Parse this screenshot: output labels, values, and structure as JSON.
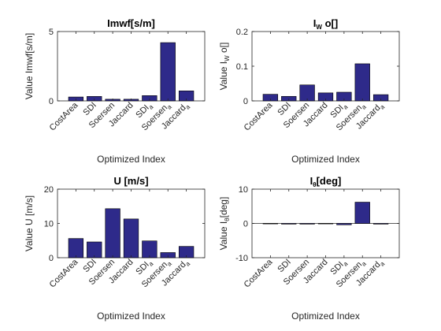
{
  "chart_data": [
    {
      "type": "bar",
      "title": "Imwf[s/m]",
      "xlabel": "Optimized Index",
      "ylabel": "Value Imwf[s/m]",
      "ylim": [
        0,
        5
      ],
      "yticks": [
        "0",
        "5"
      ],
      "categories": [
        "CostArea",
        "SDI",
        "Soersen",
        "Jaccard",
        "SDI_a",
        "Soersen_a",
        "Jaccard_a"
      ],
      "values": [
        0.28,
        0.32,
        0.12,
        0.12,
        0.38,
        4.2,
        0.72
      ],
      "bar_color": "#2e2a8a"
    },
    {
      "type": "bar",
      "title": "I_W o[]",
      "xlabel": "Optimized Index",
      "ylabel": "Value I_W o[]",
      "ylim": [
        0,
        0.2
      ],
      "yticks": [
        "0",
        "0.1",
        "0.2"
      ],
      "categories": [
        "CostArea",
        "SDI",
        "Soersen",
        "Jaccard",
        "SDI_a",
        "Soersen_a",
        "Jaccard_a"
      ],
      "values": [
        0.019,
        0.013,
        0.046,
        0.023,
        0.025,
        0.107,
        0.018
      ],
      "bar_color": "#2e2a8a"
    },
    {
      "type": "bar",
      "title": "U [m/s]",
      "xlabel": "Optimized Index",
      "ylabel": "Value U [m/s]",
      "ylim": [
        0,
        20
      ],
      "yticks": [
        "0",
        "10",
        "20"
      ],
      "categories": [
        "CostArea",
        "SDI",
        "Soersen",
        "Jaccard",
        "SDI_a",
        "Soersen_a",
        "Jaccard_a"
      ],
      "values": [
        5.6,
        4.6,
        14.3,
        11.3,
        4.9,
        1.5,
        3.3
      ],
      "bar_color": "#2e2a8a"
    },
    {
      "type": "bar",
      "title": "I_θ[deg]",
      "xlabel": "Optimized Index",
      "ylabel": "Value I_θ[deg]",
      "ylim": [
        -10,
        10
      ],
      "yticks": [
        "-10",
        "0",
        "10"
      ],
      "categories": [
        "CostArea",
        "SDI",
        "Soersen",
        "Jaccard",
        "SDI_a",
        "Soersen_a",
        "Jaccard_a"
      ],
      "values": [
        0,
        -0.2,
        -0.2,
        0,
        -0.4,
        6.2,
        -0.2
      ],
      "bar_color": "#2e2a8a"
    }
  ]
}
